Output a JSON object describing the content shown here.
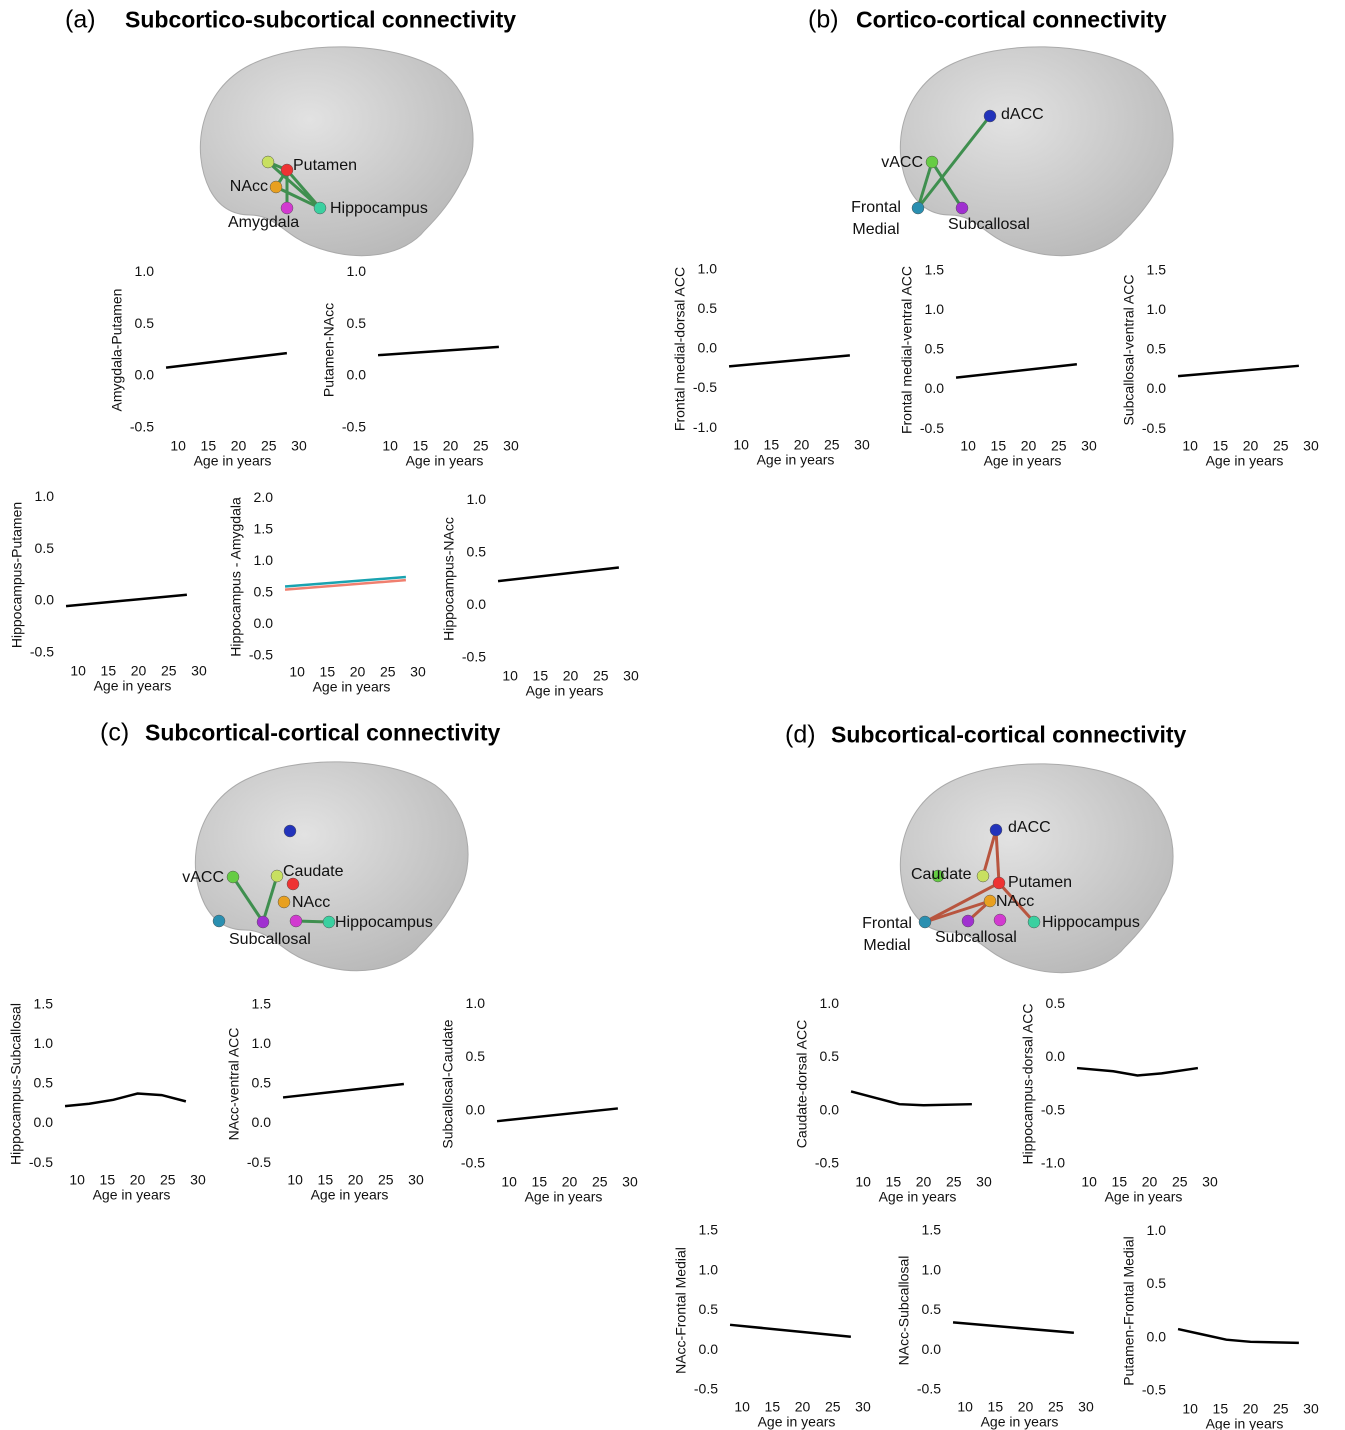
{
  "panels": [
    {
      "label": "(a)",
      "title": "Subcortico-subcortical connectivity",
      "nodes": [
        {
          "label": "Putamen"
        },
        {
          "label": "NAcc"
        },
        {
          "label": "Amygdala"
        },
        {
          "label": "Hippocampus"
        }
      ],
      "plots": [
        {
          "type": "line",
          "ylabel": "Amygdala-Putamen",
          "xlabel": "Age in years",
          "xlim": [
            7,
            31
          ],
          "ylim": [
            -0.55,
            1.05
          ],
          "xticks": [
            10,
            15,
            20,
            25,
            30
          ],
          "yticks": [
            -0.5,
            {
              "value": 0,
              "label": "0.0"
            },
            0.5,
            {
              "value": 1,
              "label": "1.0"
            }
          ],
          "series": [
            {
              "color": "#000000",
              "x": [
                8,
                28
              ],
              "values": [
                0.08,
                0.22
              ]
            }
          ]
        },
        {
          "type": "line",
          "ylabel": "Putamen-NAcc",
          "xlabel": "Age in years",
          "xlim": [
            7,
            31
          ],
          "ylim": [
            -0.55,
            1.05
          ],
          "xticks": [
            10,
            15,
            20,
            25,
            30
          ],
          "yticks": [
            -0.5,
            {
              "value": 0,
              "label": "0.0"
            },
            0.5,
            {
              "value": 1,
              "label": "1.0"
            }
          ],
          "series": [
            {
              "color": "#000000",
              "x": [
                8,
                28
              ],
              "values": [
                0.2,
                0.28
              ]
            }
          ]
        },
        {
          "type": "line",
          "ylabel": "Hippocampus-Putamen",
          "xlabel": "Age in years",
          "xlim": [
            7,
            31
          ],
          "ylim": [
            -0.55,
            1.05
          ],
          "xticks": [
            10,
            15,
            20,
            25,
            30
          ],
          "yticks": [
            -0.5,
            {
              "value": 0,
              "label": "0.0"
            },
            0.5,
            {
              "value": 1,
              "label": "1.0"
            }
          ],
          "series": [
            {
              "color": "#000000",
              "x": [
                8,
                28
              ],
              "values": [
                -0.05,
                0.06
              ]
            }
          ]
        },
        {
          "type": "line",
          "ylabel": "Hippocampus - Amygdala",
          "xlabel": "Age in years",
          "xlim": [
            7,
            31
          ],
          "ylim": [
            -0.55,
            2.05
          ],
          "xticks": [
            10,
            15,
            20,
            25,
            30
          ],
          "yticks": [
            -0.5,
            {
              "value": 0,
              "label": "0.0"
            },
            0.5,
            {
              "value": 1,
              "label": "1.0"
            },
            1.5,
            {
              "value": 2,
              "label": "2.0"
            }
          ],
          "series": [
            {
              "color": "#f07f6f",
              "x": [
                8,
                28
              ],
              "values": [
                0.55,
                0.7
              ]
            },
            {
              "color": "#1aa3b0",
              "x": [
                8,
                28
              ],
              "values": [
                0.6,
                0.75
              ]
            }
          ]
        },
        {
          "type": "line",
          "ylabel": "Hippocampus-NAcc",
          "xlabel": "Age in years",
          "xlim": [
            7,
            31
          ],
          "ylim": [
            -0.55,
            1.05
          ],
          "xticks": [
            10,
            15,
            20,
            25,
            30
          ],
          "yticks": [
            -0.5,
            {
              "value": 0,
              "label": "0.0"
            },
            0.5,
            {
              "value": 1,
              "label": "1.0"
            }
          ],
          "series": [
            {
              "color": "#000000",
              "x": [
                8,
                28
              ],
              "values": [
                0.23,
                0.36
              ]
            }
          ]
        }
      ]
    },
    {
      "label": "(b)",
      "title": "Cortico-cortical connectivity",
      "nodes": [
        {
          "label": "dACC"
        },
        {
          "label": "vACC"
        },
        {
          "label": "Frontal Medial"
        },
        {
          "label": "Subcallosal"
        }
      ],
      "plots": [
        {
          "type": "line",
          "ylabel": "Frontal medial-dorsal ACC",
          "xlabel": "Age in years",
          "xlim": [
            7,
            31
          ],
          "ylim": [
            -1.05,
            1.05
          ],
          "xticks": [
            10,
            15,
            20,
            25,
            30
          ],
          "yticks": [
            {
              "value": -1,
              "label": "-1.0"
            },
            -0.5,
            {
              "value": 0,
              "label": "0.0"
            },
            0.5,
            {
              "value": 1,
              "label": "1.0"
            }
          ],
          "series": [
            {
              "color": "#000000",
              "x": [
                8,
                28
              ],
              "values": [
                -0.22,
                -0.08
              ]
            }
          ]
        },
        {
          "type": "line",
          "ylabel": "Frontal medial-ventral ACC",
          "xlabel": "Age in years",
          "xlim": [
            7,
            31
          ],
          "ylim": [
            -0.55,
            1.55
          ],
          "xticks": [
            10,
            15,
            20,
            25,
            30
          ],
          "yticks": [
            -0.5,
            {
              "value": 0,
              "label": "0.0"
            },
            0.5,
            {
              "value": 1,
              "label": "1.0"
            },
            1.5
          ],
          "series": [
            {
              "color": "#000000",
              "x": [
                8,
                28
              ],
              "values": [
                0.15,
                0.32
              ]
            }
          ]
        },
        {
          "type": "line",
          "ylabel": "Subcallosal-ventral ACC",
          "xlabel": "Age in years",
          "xlim": [
            7,
            31
          ],
          "ylim": [
            -0.55,
            1.55
          ],
          "xticks": [
            10,
            15,
            20,
            25,
            30
          ],
          "yticks": [
            -0.5,
            {
              "value": 0,
              "label": "0.0"
            },
            0.5,
            {
              "value": 1,
              "label": "1.0"
            },
            1.5
          ],
          "series": [
            {
              "color": "#000000",
              "x": [
                8,
                28
              ],
              "values": [
                0.17,
                0.3
              ]
            }
          ]
        }
      ]
    },
    {
      "label": "(c)",
      "title": "Subcortical-cortical connectivity",
      "nodes": [
        {
          "label": "vACC"
        },
        {
          "label": "Caudate"
        },
        {
          "label": "NAcc"
        },
        {
          "label": "Subcallosal"
        },
        {
          "label": "Hippocampus"
        }
      ],
      "plots": [
        {
          "type": "line",
          "ylabel": "Hippocampus-Subcallosal",
          "xlabel": "Age in years",
          "xlim": [
            7,
            31
          ],
          "ylim": [
            -0.55,
            1.55
          ],
          "xticks": [
            10,
            15,
            20,
            25,
            30
          ],
          "yticks": [
            -0.5,
            {
              "value": 0,
              "label": "0.0"
            },
            0.5,
            {
              "value": 1,
              "label": "1.0"
            },
            1.5
          ],
          "series": [
            {
              "color": "#000000",
              "x": [
                8,
                12,
                16,
                20,
                24,
                28
              ],
              "values": [
                0.22,
                0.25,
                0.3,
                0.38,
                0.36,
                0.28
              ]
            }
          ]
        },
        {
          "type": "line",
          "ylabel": "NAcc-ventral ACC",
          "xlabel": "Age in years",
          "xlim": [
            7,
            31
          ],
          "ylim": [
            -0.55,
            1.55
          ],
          "xticks": [
            10,
            15,
            20,
            25,
            30
          ],
          "yticks": [
            -0.5,
            {
              "value": 0,
              "label": "0.0"
            },
            0.5,
            {
              "value": 1,
              "label": "1.0"
            },
            1.5
          ],
          "series": [
            {
              "color": "#000000",
              "x": [
                8,
                28
              ],
              "values": [
                0.33,
                0.5
              ]
            }
          ]
        },
        {
          "type": "line",
          "ylabel": "Subcallosal-Caudate",
          "xlabel": "Age in years",
          "xlim": [
            7,
            31
          ],
          "ylim": [
            -0.55,
            1.05
          ],
          "xticks": [
            10,
            15,
            20,
            25,
            30
          ],
          "yticks": [
            -0.5,
            {
              "value": 0,
              "label": "0.0"
            },
            0.5,
            {
              "value": 1,
              "label": "1.0"
            }
          ],
          "series": [
            {
              "color": "#000000",
              "x": [
                8,
                28
              ],
              "values": [
                -0.1,
                0.02
              ]
            }
          ]
        }
      ]
    },
    {
      "label": "(d)",
      "title": "Subcortical-cortical connectivity",
      "nodes": [
        {
          "label": "dACC"
        },
        {
          "label": "Caudate"
        },
        {
          "label": "Putamen"
        },
        {
          "label": "NAcc"
        },
        {
          "label": "Frontal Medial"
        },
        {
          "label": "Subcallosal"
        },
        {
          "label": "Hippocampus"
        }
      ],
      "plots": [
        {
          "type": "line",
          "ylabel": "Caudate-dorsal ACC",
          "xlabel": "Age in years",
          "xlim": [
            7,
            31
          ],
          "ylim": [
            -0.55,
            1.05
          ],
          "xticks": [
            10,
            15,
            20,
            25,
            30
          ],
          "yticks": [
            -0.5,
            {
              "value": 0,
              "label": "0.0"
            },
            0.5,
            {
              "value": 1,
              "label": "1.0"
            }
          ],
          "series": [
            {
              "color": "#000000",
              "x": [
                8,
                12,
                16,
                20,
                28
              ],
              "values": [
                0.18,
                0.12,
                0.06,
                0.05,
                0.06
              ]
            }
          ]
        },
        {
          "type": "line",
          "ylabel": "Hippocampus-dorsal ACC",
          "xlabel": "Age in years",
          "xlim": [
            7,
            31
          ],
          "ylim": [
            -1.05,
            0.55
          ],
          "xticks": [
            10,
            15,
            20,
            25,
            30
          ],
          "yticks": [
            {
              "value": -1,
              "label": "-1.0"
            },
            -0.5,
            {
              "value": 0,
              "label": "0.0"
            },
            0.5
          ],
          "series": [
            {
              "color": "#000000",
              "x": [
                8,
                14,
                18,
                22,
                28
              ],
              "values": [
                -0.1,
                -0.13,
                -0.17,
                -0.15,
                -0.1
              ]
            }
          ]
        },
        {
          "type": "line",
          "ylabel": "NAcc-Frontal Medial",
          "xlabel": "Age in years",
          "xlim": [
            7,
            31
          ],
          "ylim": [
            -0.55,
            1.55
          ],
          "xticks": [
            10,
            15,
            20,
            25,
            30
          ],
          "yticks": [
            -0.5,
            {
              "value": 0,
              "label": "0.0"
            },
            0.5,
            {
              "value": 1,
              "label": "1.0"
            },
            1.5
          ],
          "series": [
            {
              "color": "#000000",
              "x": [
                8,
                28
              ],
              "values": [
                0.32,
                0.17
              ]
            }
          ]
        },
        {
          "type": "line",
          "ylabel": "NAcc-Subcallosal",
          "xlabel": "Age in years",
          "xlim": [
            7,
            31
          ],
          "ylim": [
            -0.55,
            1.55
          ],
          "xticks": [
            10,
            15,
            20,
            25,
            30
          ],
          "yticks": [
            -0.5,
            {
              "value": 0,
              "label": "0.0"
            },
            0.5,
            {
              "value": 1,
              "label": "1.0"
            },
            1.5
          ],
          "series": [
            {
              "color": "#000000",
              "x": [
                8,
                28
              ],
              "values": [
                0.35,
                0.22
              ]
            }
          ]
        },
        {
          "type": "line",
          "ylabel": "Putamen-Frontal Medial",
          "xlabel": "Age in years",
          "xlim": [
            7,
            31
          ],
          "ylim": [
            -0.55,
            1.05
          ],
          "xticks": [
            10,
            15,
            20,
            25,
            30
          ],
          "yticks": [
            -0.5,
            {
              "value": 0,
              "label": "0.0"
            },
            0.5,
            {
              "value": 1,
              "label": "1.0"
            }
          ],
          "series": [
            {
              "color": "#000000",
              "x": [
                8,
                12,
                16,
                20,
                28
              ],
              "values": [
                0.08,
                0.03,
                -0.02,
                -0.04,
                -0.05
              ]
            }
          ]
        }
      ]
    }
  ]
}
